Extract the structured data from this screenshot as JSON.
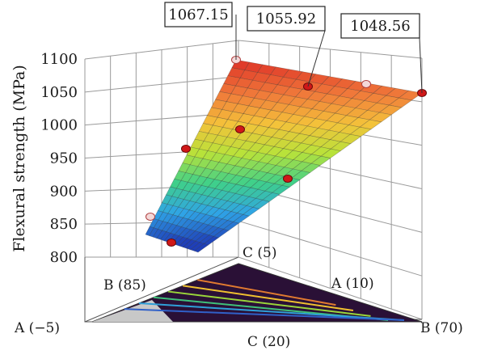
{
  "chart_data": {
    "type": "surface3d",
    "ylabel": "Flexural strength (MPa)",
    "zlim": [
      800,
      1100
    ],
    "z_ticks": [
      800,
      850,
      900,
      950,
      1000,
      1050,
      1100
    ],
    "grid": true,
    "colormap": [
      "#1f3fb8",
      "#2fa4e6",
      "#3fd08a",
      "#b8e23a",
      "#f4c23a",
      "#f07a3a",
      "#e03a2a"
    ],
    "axes_labels": {
      "c_top": "C (5)",
      "b_left": "B (85)",
      "a_right": "A (10)",
      "a_left": "A (−5)",
      "c_bottom": "C (20)",
      "b_right": "B (70)"
    },
    "callouts": [
      {
        "label": "1067.15",
        "value": 1067.15
      },
      {
        "label": "1055.92",
        "value": 1055.92
      },
      {
        "label": "1048.56",
        "value": 1048.56
      }
    ],
    "design_points": [
      {
        "name": "top-left",
        "value": 1067.15
      },
      {
        "name": "top-mid",
        "value": 1055.92
      },
      {
        "name": "top-right",
        "value": 1048.56
      },
      {
        "name": "upper-mid",
        "value": 1045
      },
      {
        "name": "center",
        "value": 995
      },
      {
        "name": "left-mid",
        "value": 965
      },
      {
        "name": "right-mid",
        "value": 918
      },
      {
        "name": "low-left",
        "value": 860
      },
      {
        "name": "bottom",
        "value": 822
      }
    ]
  }
}
